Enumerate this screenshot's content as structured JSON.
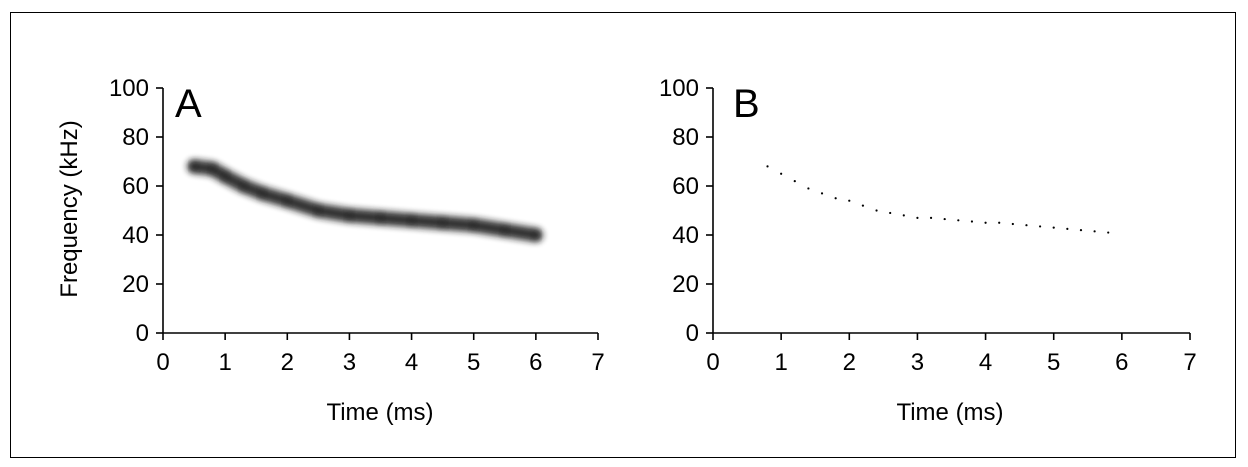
{
  "chart_data": [
    {
      "panel_label": "A",
      "type": "line",
      "render": "spectrogram-trace",
      "xlabel": "Time (ms)",
      "ylabel": "Frequency (kHz)",
      "xlim": [
        0,
        7
      ],
      "ylim": [
        0,
        100
      ],
      "xticks": [
        "0",
        "1",
        "2",
        "3",
        "4",
        "5",
        "6",
        "7"
      ],
      "yticks": [
        "0",
        "20",
        "40",
        "60",
        "80",
        "100"
      ],
      "grid": false,
      "x": [
        0.5,
        0.8,
        1.0,
        1.3,
        1.6,
        2.0,
        2.5,
        3.0,
        3.5,
        4.0,
        4.5,
        5.0,
        5.5,
        6.0
      ],
      "y": [
        68,
        67,
        64,
        60,
        57,
        54,
        50,
        48,
        47,
        46,
        45,
        44,
        42,
        40
      ]
    },
    {
      "panel_label": "B",
      "type": "scatter",
      "render": "dotted-trace",
      "xlabel": "Time (ms)",
      "ylabel": "",
      "xlim": [
        0,
        7
      ],
      "ylim": [
        0,
        100
      ],
      "xticks": [
        "0",
        "1",
        "2",
        "3",
        "4",
        "5",
        "6",
        "7"
      ],
      "yticks": [
        "0",
        "20",
        "40",
        "60",
        "80",
        "100"
      ],
      "grid": false,
      "x": [
        0.8,
        1.0,
        1.2,
        1.4,
        1.6,
        1.8,
        2.0,
        2.2,
        2.4,
        2.6,
        2.8,
        3.0,
        3.2,
        3.4,
        3.6,
        3.8,
        4.0,
        4.2,
        4.4,
        4.6,
        4.8,
        5.0,
        5.2,
        5.4,
        5.6,
        5.8
      ],
      "y": [
        68,
        65,
        62,
        59,
        57,
        55,
        54,
        52,
        50,
        49,
        48,
        47,
        47,
        46.5,
        46,
        45.5,
        45,
        45,
        44.5,
        44,
        43.5,
        43,
        42.5,
        42,
        41.5,
        41
      ]
    }
  ],
  "colors": {
    "ink": "#000000",
    "trace": "#1a1a1a",
    "background": "#ffffff"
  }
}
